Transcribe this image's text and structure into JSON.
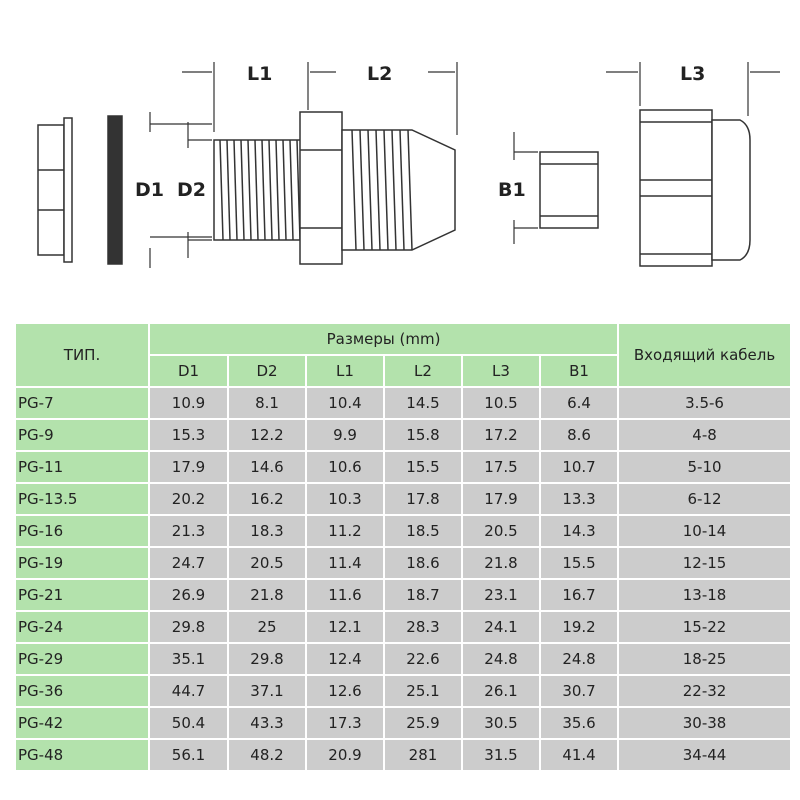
{
  "drawing": {
    "labels": {
      "l1": "L1",
      "l2": "L2",
      "l3": "L3",
      "d1": "D1",
      "d2": "D2",
      "b1": "B1"
    }
  },
  "table": {
    "type_header": "ТИП.",
    "sizes_header": "Размеры (mm)",
    "cable_header": "Входящий кабель",
    "columns": [
      "D1",
      "D2",
      "L1",
      "L2",
      "L3",
      "B1"
    ],
    "rows": [
      [
        "PG-7",
        "10.9",
        "8.1",
        "10.4",
        "14.5",
        "10.5",
        "6.4",
        "3.5-6"
      ],
      [
        "PG-9",
        "15.3",
        "12.2",
        "9.9",
        "15.8",
        "17.2",
        "8.6",
        "4-8"
      ],
      [
        "PG-11",
        "17.9",
        "14.6",
        "10.6",
        "15.5",
        "17.5",
        "10.7",
        "5-10"
      ],
      [
        "PG-13.5",
        "20.2",
        "16.2",
        "10.3",
        "17.8",
        "17.9",
        "13.3",
        "6-12"
      ],
      [
        "PG-16",
        "21.3",
        "18.3",
        "11.2",
        "18.5",
        "20.5",
        "14.3",
        "10-14"
      ],
      [
        "PG-19",
        "24.7",
        "20.5",
        "11.4",
        "18.6",
        "21.8",
        "15.5",
        "12-15"
      ],
      [
        "PG-21",
        "26.9",
        "21.8",
        "11.6",
        "18.7",
        "23.1",
        "16.7",
        "13-18"
      ],
      [
        "PG-24",
        "29.8",
        "25",
        "12.1",
        "28.3",
        "24.1",
        "19.2",
        "15-22"
      ],
      [
        "PG-29",
        "35.1",
        "29.8",
        "12.4",
        "22.6",
        "24.8",
        "24.8",
        "18-25"
      ],
      [
        "PG-36",
        "44.7",
        "37.1",
        "12.6",
        "25.1",
        "26.1",
        "30.7",
        "22-32"
      ],
      [
        "PG-42",
        "50.4",
        "43.3",
        "17.3",
        "25.9",
        "30.5",
        "35.6",
        "30-38"
      ],
      [
        "PG-48",
        "56.1",
        "48.2",
        "20.9",
        "281",
        "31.5",
        "41.4",
        "34-44"
      ]
    ]
  }
}
